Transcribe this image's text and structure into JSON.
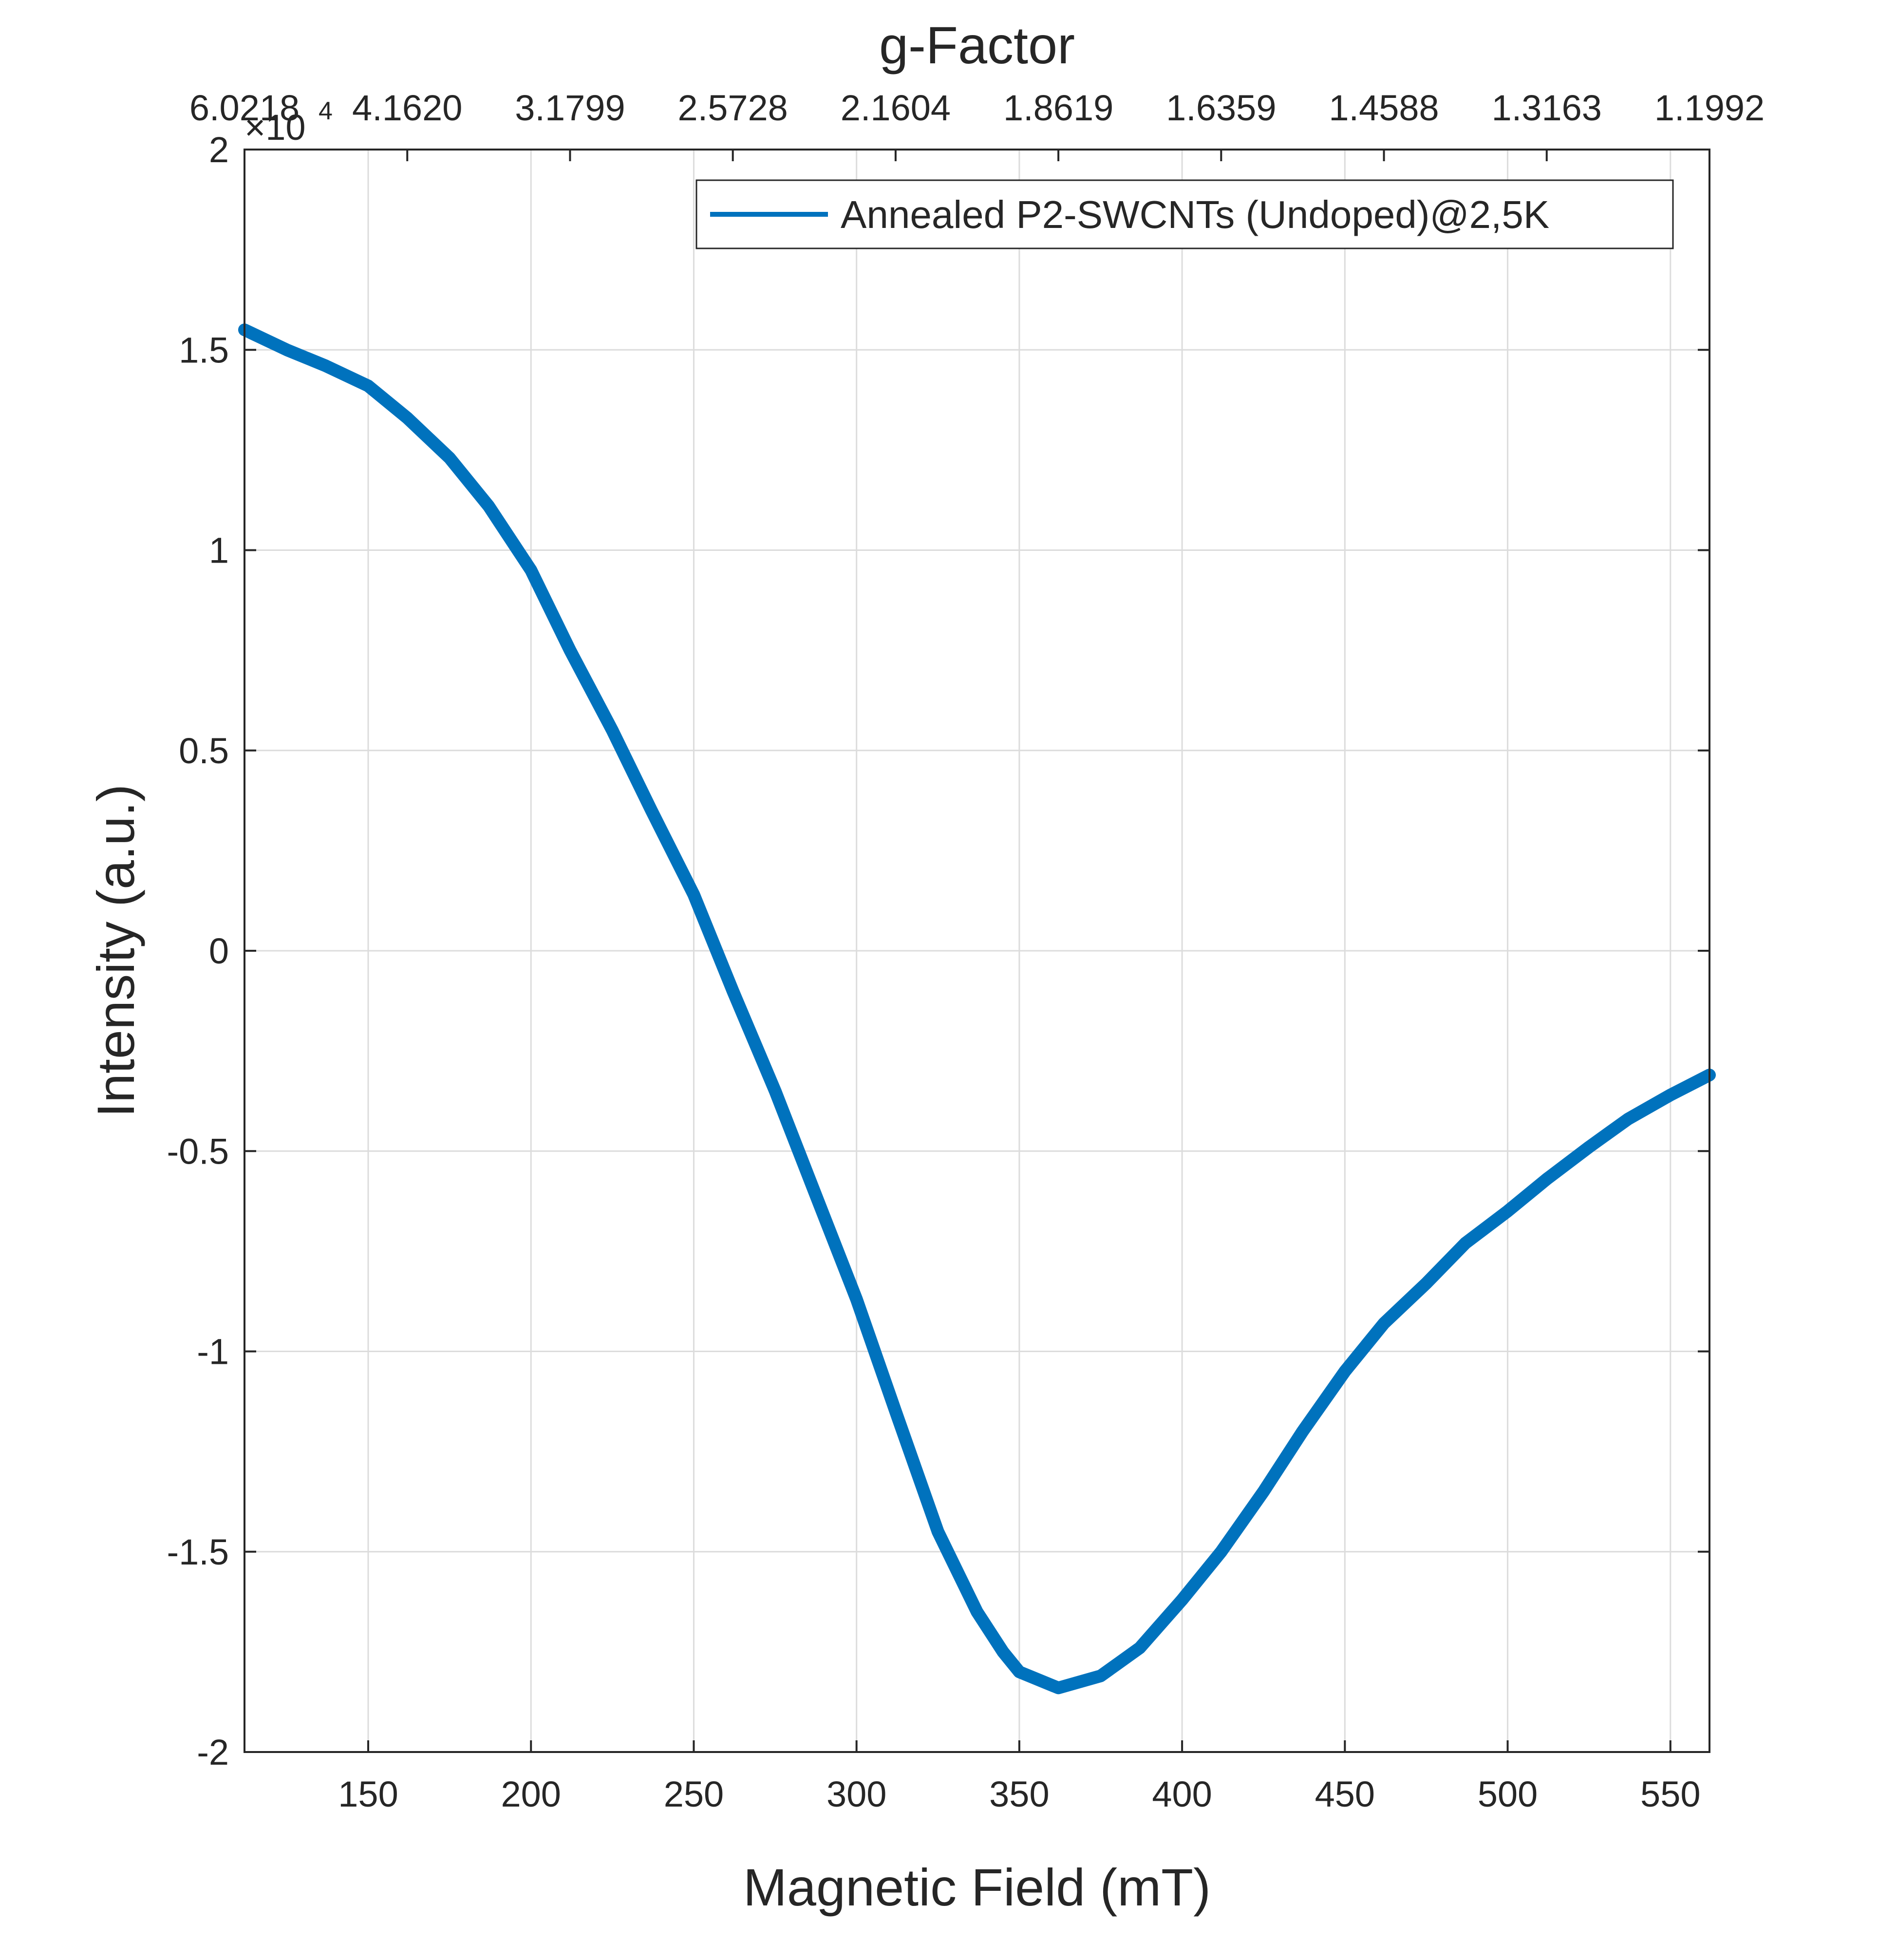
{
  "chart_data": {
    "type": "line",
    "title": "g-Factor",
    "xlabel": "Magnetic Field (mT)",
    "ylabel": "Intensity (a.u.)",
    "y_exponent_label": "×10",
    "y_exponent": "4",
    "xlim": [
      112,
      562
    ],
    "ylim": [
      -2,
      2
    ],
    "x_ticks": [
      150,
      200,
      250,
      300,
      350,
      400,
      450,
      500,
      550
    ],
    "y_ticks": [
      -2,
      -1.5,
      -1,
      -0.5,
      0,
      0.5,
      1,
      1.5,
      2
    ],
    "y_tick_labels": [
      "-2",
      "-1.5",
      "-1",
      "-0.5",
      "0",
      "0.5",
      "1",
      "1.5",
      "2"
    ],
    "top_axis": {
      "label": "g-Factor",
      "ticks": [
        112,
        162,
        212,
        262,
        312,
        362,
        412,
        462,
        512,
        562
      ],
      "tick_labels": [
        "6.0218",
        "4.1620",
        "3.1799",
        "2.5728",
        "2.1604",
        "1.8619",
        "1.6359",
        "1.4588",
        "1.3163",
        "1.1992"
      ]
    },
    "grid": true,
    "legend_position": "top-right",
    "series": [
      {
        "name": "Annealed P2-SWCNTs (Undoped)@2,5K",
        "color": "#0072BD",
        "x": [
          112,
          125,
          137,
          150,
          162,
          175,
          187,
          200,
          212,
          225,
          237,
          250,
          262,
          275,
          287,
          300,
          312,
          325,
          337,
          345,
          350,
          362,
          375,
          387,
          400,
          412,
          425,
          437,
          450,
          462,
          475,
          487,
          500,
          512,
          525,
          537,
          550,
          562
        ],
        "y": [
          1.55,
          1.5,
          1.46,
          1.41,
          1.33,
          1.23,
          1.11,
          0.95,
          0.75,
          0.55,
          0.35,
          0.14,
          -0.1,
          -0.35,
          -0.6,
          -0.87,
          -1.15,
          -1.45,
          -1.65,
          -1.75,
          -1.8,
          -1.84,
          -1.81,
          -1.74,
          -1.62,
          -1.5,
          -1.35,
          -1.2,
          -1.05,
          -0.93,
          -0.83,
          -0.73,
          -0.65,
          -0.57,
          -0.49,
          -0.42,
          -0.36,
          -0.31
        ]
      }
    ]
  }
}
